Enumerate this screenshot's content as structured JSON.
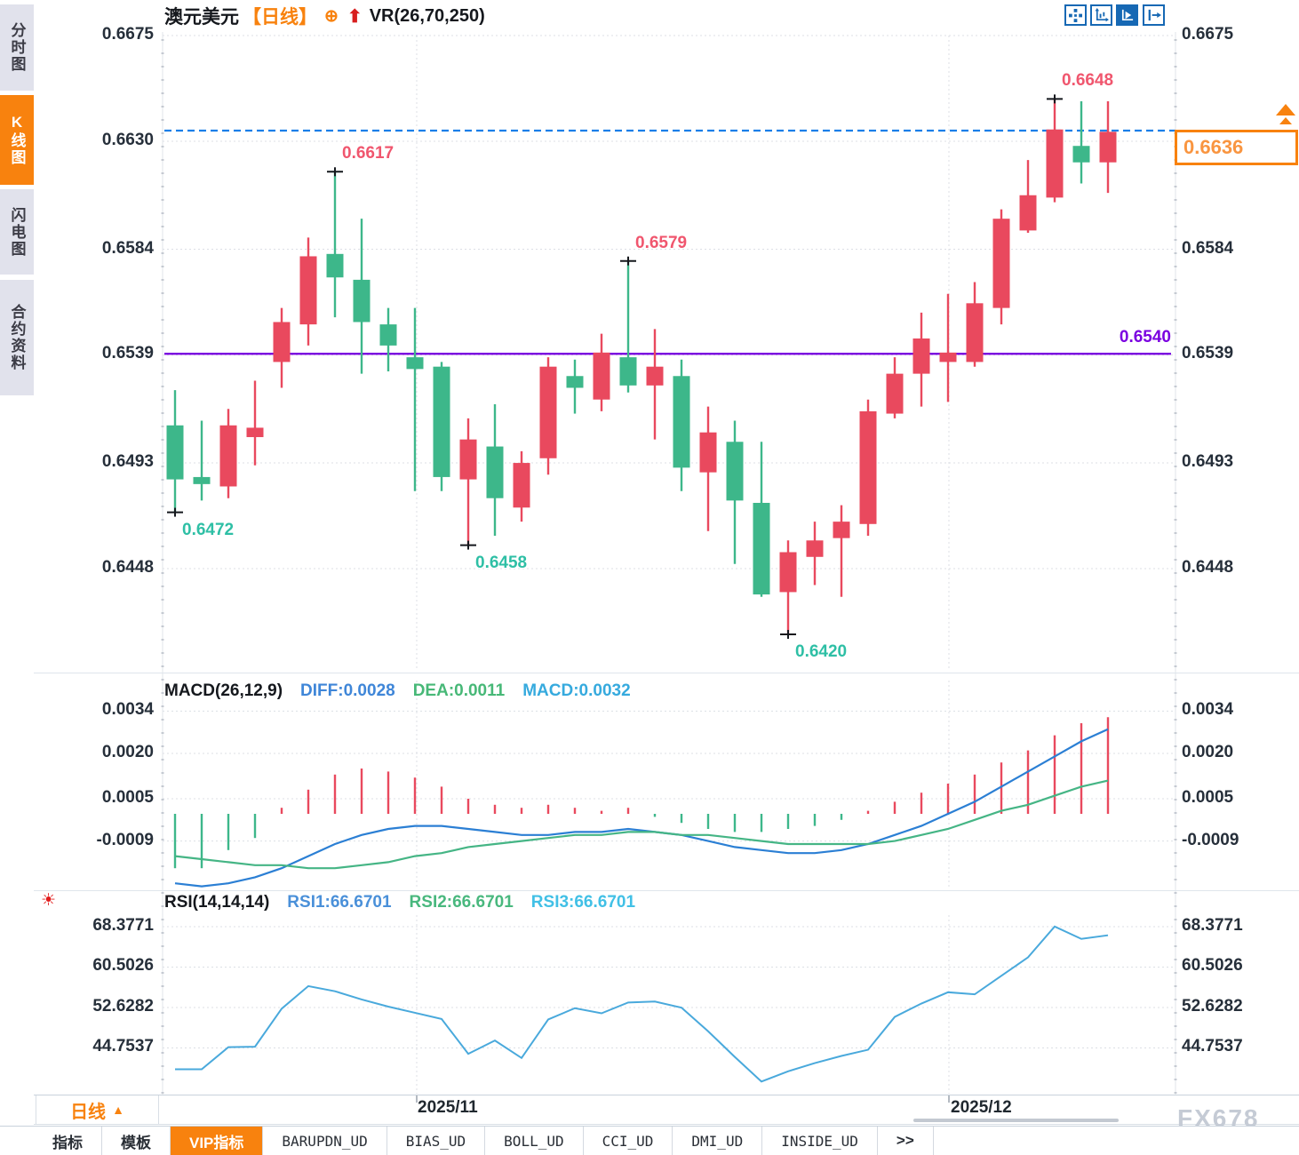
{
  "header": {
    "symbol": "澳元美元",
    "timeframe": "【日线】",
    "target_icon": "⊕",
    "up_arrow_icon": "⬆",
    "indicator": "VR(26,70,250)"
  },
  "sidebar": {
    "tabs": [
      {
        "label": "分时图",
        "active": false
      },
      {
        "label": "K线图",
        "active": true
      },
      {
        "label": "闪电图",
        "active": false
      },
      {
        "label": "合约资料",
        "active": false
      }
    ]
  },
  "toolbar": {
    "icons": [
      "pan-crosshair",
      "axis-scale",
      "auto-scale",
      "collapse-panel"
    ]
  },
  "chart_data": {
    "type": "candlestick",
    "title": "澳元美元 日线",
    "price_axis_ticks": [
      "0.6675",
      "0.6630",
      "0.6584",
      "0.6539",
      "0.6493",
      "0.6448"
    ],
    "x_axis_labels": [
      {
        "text": "2025/11"
      },
      {
        "text": "2025/12"
      }
    ],
    "colors": {
      "up": "#e9495e",
      "down": "#3db78a",
      "diff_line": "#2b7fd4",
      "dea_line": "#45b585",
      "rsi_line": "#49a9dc",
      "level_line": "#7a00e0",
      "current_price_line": "#1a7fe8",
      "accent_orange": "#f8820e"
    },
    "candles": [
      {
        "o": 0.6509,
        "h": 0.6524,
        "l": 0.6472,
        "c": 0.6486
      },
      {
        "o": 0.6487,
        "h": 0.6511,
        "l": 0.6477,
        "c": 0.6484
      },
      {
        "o": 0.6483,
        "h": 0.6516,
        "l": 0.6478,
        "c": 0.6509
      },
      {
        "o": 0.6504,
        "h": 0.6528,
        "l": 0.6492,
        "c": 0.6508
      },
      {
        "o": 0.6536,
        "h": 0.6559,
        "l": 0.6525,
        "c": 0.6553
      },
      {
        "o": 0.6552,
        "h": 0.6589,
        "l": 0.6543,
        "c": 0.6581
      },
      {
        "o": 0.6582,
        "h": 0.6617,
        "l": 0.6555,
        "c": 0.6572
      },
      {
        "o": 0.6571,
        "h": 0.6597,
        "l": 0.6531,
        "c": 0.6553
      },
      {
        "o": 0.6552,
        "h": 0.6559,
        "l": 0.6532,
        "c": 0.6543
      },
      {
        "o": 0.6538,
        "h": 0.6559,
        "l": 0.6481,
        "c": 0.6533
      },
      {
        "o": 0.6534,
        "h": 0.6536,
        "l": 0.6481,
        "c": 0.6487
      },
      {
        "o": 0.6486,
        "h": 0.6512,
        "l": 0.6458,
        "c": 0.6503
      },
      {
        "o": 0.65,
        "h": 0.6518,
        "l": 0.6462,
        "c": 0.6478
      },
      {
        "o": 0.6474,
        "h": 0.6498,
        "l": 0.6468,
        "c": 0.6493
      },
      {
        "o": 0.6495,
        "h": 0.6538,
        "l": 0.6488,
        "c": 0.6534
      },
      {
        "o": 0.653,
        "h": 0.6537,
        "l": 0.6514,
        "c": 0.6525
      },
      {
        "o": 0.652,
        "h": 0.6548,
        "l": 0.6515,
        "c": 0.654
      },
      {
        "o": 0.6538,
        "h": 0.6579,
        "l": 0.6523,
        "c": 0.6526
      },
      {
        "o": 0.6526,
        "h": 0.655,
        "l": 0.6503,
        "c": 0.6534
      },
      {
        "o": 0.653,
        "h": 0.6537,
        "l": 0.6481,
        "c": 0.6491
      },
      {
        "o": 0.6489,
        "h": 0.6517,
        "l": 0.6464,
        "c": 0.6506
      },
      {
        "o": 0.6502,
        "h": 0.6511,
        "l": 0.645,
        "c": 0.6477
      },
      {
        "o": 0.6476,
        "h": 0.6502,
        "l": 0.6436,
        "c": 0.6437
      },
      {
        "o": 0.6438,
        "h": 0.646,
        "l": 0.642,
        "c": 0.6455
      },
      {
        "o": 0.6453,
        "h": 0.6468,
        "l": 0.6441,
        "c": 0.646
      },
      {
        "o": 0.6461,
        "h": 0.6475,
        "l": 0.6436,
        "c": 0.6468
      },
      {
        "o": 0.6467,
        "h": 0.652,
        "l": 0.6462,
        "c": 0.6515
      },
      {
        "o": 0.6514,
        "h": 0.6538,
        "l": 0.6512,
        "c": 0.6531
      },
      {
        "o": 0.6531,
        "h": 0.6557,
        "l": 0.6517,
        "c": 0.6546
      },
      {
        "o": 0.6536,
        "h": 0.6565,
        "l": 0.6519,
        "c": 0.654
      },
      {
        "o": 0.6536,
        "h": 0.657,
        "l": 0.6534,
        "c": 0.6561
      },
      {
        "o": 0.6559,
        "h": 0.6601,
        "l": 0.6552,
        "c": 0.6597
      },
      {
        "o": 0.6592,
        "h": 0.6622,
        "l": 0.6591,
        "c": 0.6607
      },
      {
        "o": 0.6606,
        "h": 0.6648,
        "l": 0.6604,
        "c": 0.6635
      },
      {
        "o": 0.6628,
        "h": 0.6647,
        "l": 0.6612,
        "c": 0.6621
      },
      {
        "o": 0.6621,
        "h": 0.6647,
        "l": 0.6608,
        "c": 0.6634
      }
    ],
    "annotations": [
      {
        "index": 0,
        "type": "low",
        "text": "0.6472"
      },
      {
        "index": 6,
        "type": "high",
        "text": "0.6617"
      },
      {
        "index": 11,
        "type": "low",
        "text": "0.6458"
      },
      {
        "index": 17,
        "type": "high",
        "text": "0.6579"
      },
      {
        "index": 23,
        "type": "low",
        "text": "0.6420"
      },
      {
        "index": 33,
        "type": "high",
        "text": "0.6648"
      }
    ],
    "levels": {
      "horizontal_line": {
        "value": 0.65395,
        "label": "0.6540",
        "color": "#7a00e0"
      },
      "current_price": {
        "value": 0.6636,
        "label": "0.6636"
      }
    },
    "macd": {
      "title": "MACD(26,12,9)",
      "diff_label": "DIFF:0.0028",
      "dea_label": "DEA:0.0011",
      "macd_label": "MACD:0.0032",
      "axis_ticks": [
        "0.0034",
        "0.0020",
        "0.0005",
        "-0.0009"
      ],
      "histogram": [
        -0.0018,
        -0.0018,
        -0.0012,
        -0.0008,
        0.0002,
        0.0008,
        0.0013,
        0.0015,
        0.0014,
        0.0012,
        0.0009,
        0.0005,
        0.0003,
        0.0002,
        0.0003,
        0.0002,
        0.0001,
        0.0002,
        -0.0001,
        -0.0003,
        -0.0005,
        -0.0006,
        -0.0006,
        -0.0005,
        -0.0004,
        -0.0002,
        0.0001,
        0.0004,
        0.0007,
        0.001,
        0.0013,
        0.0017,
        0.0021,
        0.0026,
        0.003,
        0.0032
      ],
      "diff": [
        -0.0023,
        -0.0024,
        -0.0023,
        -0.0021,
        -0.0018,
        -0.0014,
        -0.001,
        -0.0007,
        -0.0005,
        -0.0004,
        -0.0004,
        -0.0005,
        -0.0006,
        -0.0007,
        -0.0007,
        -0.0006,
        -0.0006,
        -0.0005,
        -0.0006,
        -0.0007,
        -0.0009,
        -0.0011,
        -0.0012,
        -0.0013,
        -0.0013,
        -0.0012,
        -0.001,
        -0.0007,
        -0.0004,
        0.0,
        0.0004,
        0.0009,
        0.0014,
        0.0019,
        0.0024,
        0.0028
      ],
      "dea": [
        -0.0014,
        -0.0015,
        -0.0016,
        -0.0017,
        -0.0017,
        -0.0018,
        -0.0018,
        -0.0017,
        -0.0016,
        -0.0014,
        -0.0013,
        -0.0011,
        -0.001,
        -0.0009,
        -0.0008,
        -0.0007,
        -0.0007,
        -0.0006,
        -0.0006,
        -0.0007,
        -0.0007,
        -0.0008,
        -0.0009,
        -0.001,
        -0.001,
        -0.001,
        -0.001,
        -0.0009,
        -0.0007,
        -0.0005,
        -0.0002,
        0.0001,
        0.0003,
        0.0006,
        0.0009,
        0.0011
      ]
    },
    "rsi": {
      "title": "RSI(14,14,14)",
      "rsi1_label": "RSI1:66.6701",
      "rsi2_label": "RSI2:66.6701",
      "rsi3_label": "RSI3:66.6701",
      "axis_ticks": [
        "68.3771",
        "60.5026",
        "52.6282",
        "44.7537"
      ],
      "values": [
        40.6,
        40.6,
        44.9,
        45.0,
        52.4,
        56.8,
        55.8,
        54.2,
        52.8,
        51.6,
        50.4,
        43.6,
        46.2,
        42.8,
        50.3,
        52.5,
        51.5,
        53.6,
        53.8,
        52.6,
        48.0,
        43.0,
        38.2,
        40.2,
        41.8,
        43.2,
        44.4,
        50.8,
        53.4,
        55.6,
        55.2,
        58.8,
        62.4,
        68.4,
        66.0,
        66.7
      ]
    }
  },
  "footer": {
    "timeframe_button": "日线",
    "timeframe_arrow": "▲",
    "tabs": [
      {
        "label": "指标"
      },
      {
        "label": "模板"
      },
      {
        "label": "VIP指标",
        "active": true
      },
      {
        "label": "BARUPDN_UD"
      },
      {
        "label": "BIAS_UD"
      },
      {
        "label": "BOLL_UD"
      },
      {
        "label": "CCI_UD"
      },
      {
        "label": "DMI_UD"
      },
      {
        "label": "INSIDE_UD"
      },
      {
        "label": ">>"
      }
    ]
  },
  "watermark": "FX678"
}
